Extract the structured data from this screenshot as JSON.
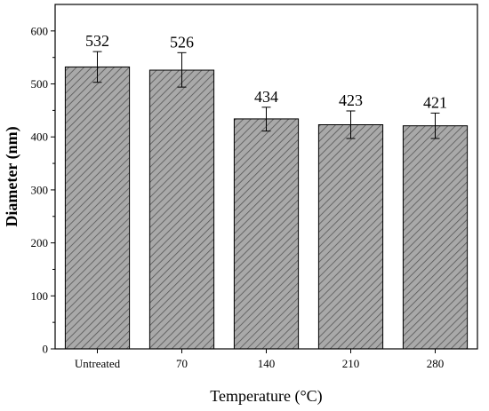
{
  "chart_data": {
    "type": "bar",
    "title": "",
    "xlabel": "Temperature (°C)",
    "ylabel": "Diameter (nm)",
    "ylim": [
      0,
      650
    ],
    "yticks": [
      0,
      100,
      200,
      300,
      400,
      500,
      600
    ],
    "categories": [
      "Untreated",
      "70",
      "140",
      "210",
      "280"
    ],
    "values": [
      532,
      526,
      434,
      423,
      421
    ],
    "error_low": [
      503,
      494,
      411,
      397,
      397
    ],
    "error_high": [
      561,
      559,
      456,
      449,
      445
    ],
    "data_labels": [
      "532",
      "526",
      "434",
      "423",
      "421"
    ],
    "bar_fill": "#a9a9a9",
    "hatch_color": "#555555",
    "grid": false,
    "legend": "none"
  }
}
